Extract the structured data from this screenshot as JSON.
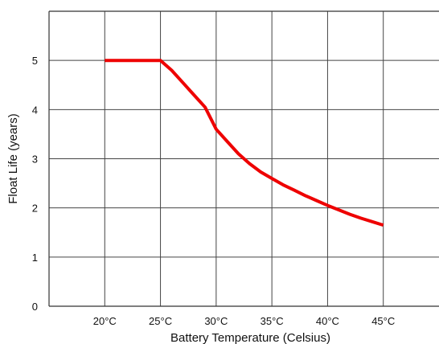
{
  "chart_data": {
    "type": "line",
    "title": "",
    "xlabel": "Battery Temperature (Celsius)",
    "ylabel": "Float Life (years)",
    "x_tick_labels": [
      "20°C",
      "25°C",
      "30°C",
      "35°C",
      "40°C",
      "45°C"
    ],
    "x_ticks": [
      20,
      25,
      30,
      35,
      40,
      45
    ],
    "xlim": [
      15,
      50
    ],
    "ylim": [
      0,
      6
    ],
    "y_ticks": [
      0,
      1,
      2,
      3,
      4,
      5
    ],
    "y_tick_labels": [
      "0",
      "1",
      "2",
      "3",
      "4",
      "5"
    ],
    "grid": true,
    "series": [
      {
        "color": "#ee0000",
        "x": [
          20,
          25,
          26,
          27,
          28,
          29,
          30,
          31,
          32,
          33,
          34,
          35,
          36,
          37,
          38,
          39,
          40,
          41,
          42,
          43,
          44,
          45
        ],
        "y": [
          5.0,
          5.0,
          4.8,
          4.55,
          4.3,
          4.05,
          3.6,
          3.35,
          3.1,
          2.9,
          2.73,
          2.6,
          2.47,
          2.36,
          2.25,
          2.15,
          2.05,
          1.96,
          1.87,
          1.79,
          1.72,
          1.65
        ]
      }
    ]
  }
}
